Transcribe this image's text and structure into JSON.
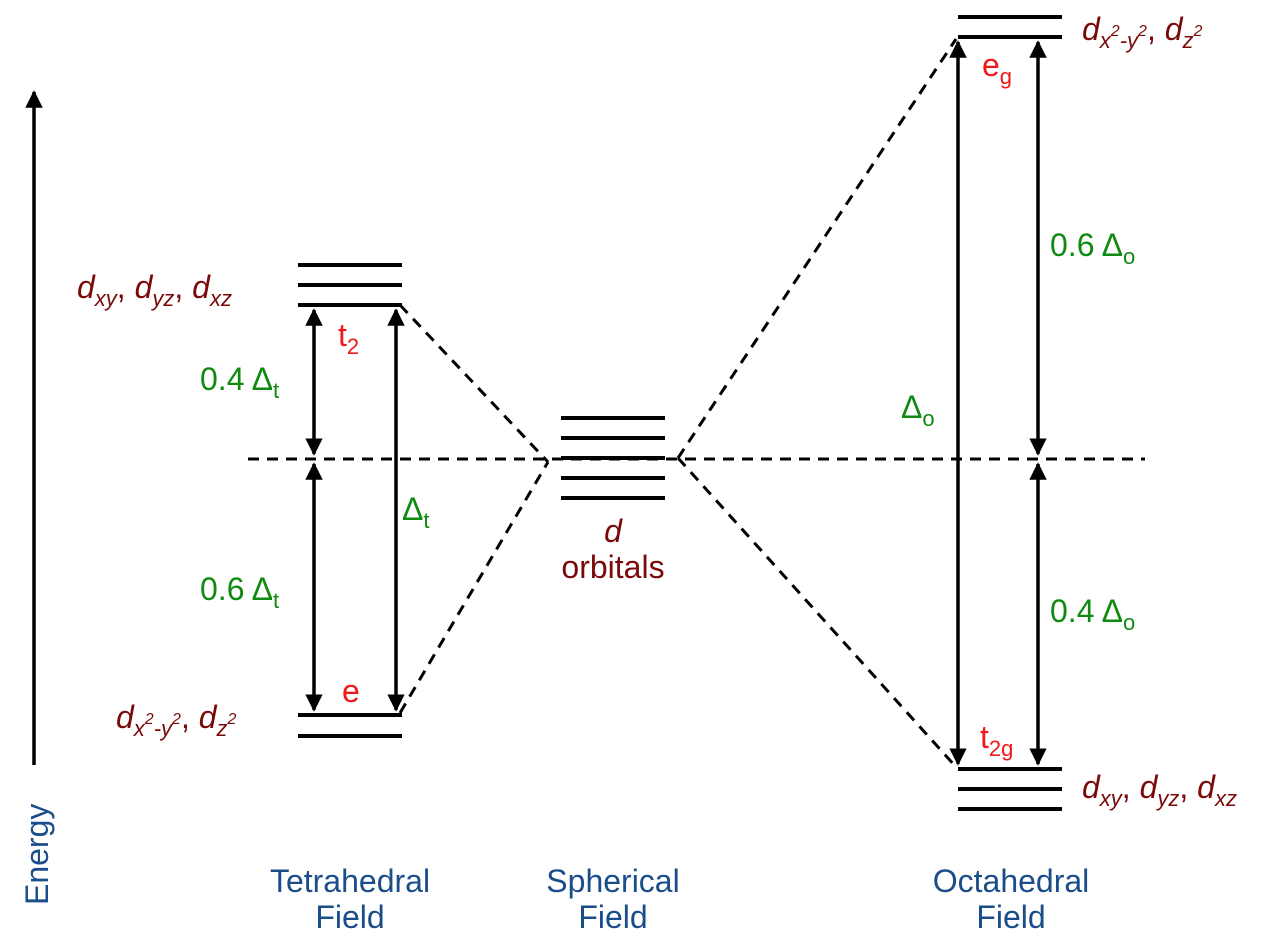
{
  "energy_label": "Energy",
  "tetrahedral": {
    "title_line1": "Tetrahedral",
    "title_line2": "Field",
    "upper_orbitals": {
      "d1": "d",
      "s1": "xy",
      "sep1": ", ",
      "d2": "d",
      "s2": "yz",
      "sep2": ", ",
      "d3": "d",
      "s3": "xz"
    },
    "lower_orbitals": {
      "d1": "d",
      "s1a": "x",
      "sup1a": "2",
      "s1b": "-y",
      "sup1b": "2",
      "sep": ", ",
      "d2": "d",
      "s2": "z",
      "sup2": "2"
    },
    "upper_symbol": {
      "base": "t",
      "sub": "2"
    },
    "lower_symbol": "e",
    "upper_split": {
      "value": "0.4 ",
      "delta": "Δ",
      "sub": "t"
    },
    "lower_split": {
      "value": "0.6 ",
      "delta": "Δ",
      "sub": "t"
    },
    "total_split": {
      "delta": "Δ",
      "sub": "t"
    }
  },
  "spherical": {
    "title_line1": "Spherical",
    "title_line2": "Field",
    "orbital_line1": "d",
    "orbital_line2": "orbitals"
  },
  "octahedral": {
    "title_line1": "Octahedral",
    "title_line2": "Field",
    "upper_orbitals": {
      "d1": "d",
      "s1a": "x",
      "sup1a": "2",
      "s1b": "-y",
      "sup1b": "2",
      "sep": ", ",
      "d2": "d",
      "s2": "z",
      "sup2": "2"
    },
    "lower_orbitals": {
      "d1": "d",
      "s1": "xy",
      "sep1": ", ",
      "d2": "d",
      "s2": "yz",
      "sep2": ", ",
      "d3": "d",
      "s3": "xz"
    },
    "upper_symbol": {
      "base": "e",
      "sub": "g"
    },
    "lower_symbol": {
      "base": "t",
      "sub": "2g"
    },
    "upper_split": {
      "value": "0.6 ",
      "delta": "Δ",
      "sub": "o"
    },
    "lower_split": {
      "value": "0.4 ",
      "delta": "Δ",
      "sub": "o"
    },
    "total_split": {
      "delta": "Δ",
      "sub": "o"
    }
  },
  "colors": {
    "orbital_label": "#7a0a0a",
    "symmetry_label": "#f01818",
    "splitting_label": "#118a11",
    "field_label": "#1a4d8a",
    "lines": "#000000"
  }
}
